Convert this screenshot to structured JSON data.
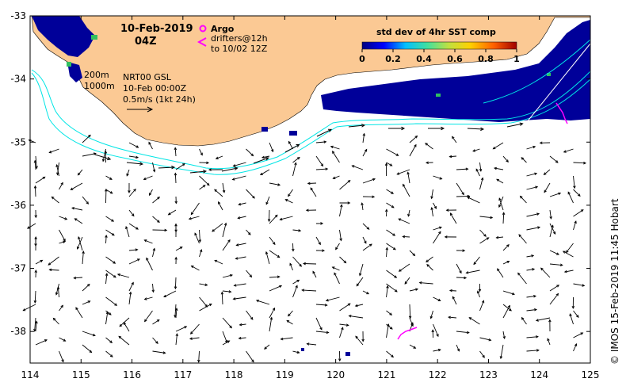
{
  "date_title": "10-Feb-2019",
  "time_title": "04Z",
  "legend": {
    "argo_label": "Argo",
    "drifters_line1": "drifters@12h",
    "drifters_line2": "to 10/02 12Z",
    "argo_color": "#ff00ff",
    "drifter_color": "#ff00ff"
  },
  "product": {
    "name": "NRT00 GSL",
    "time": "10-Feb 00:00Z",
    "scale_text": "0.5m/s (1kt 24h)"
  },
  "isobaths": {
    "label_200": "200m",
    "label_1000": "1000m",
    "color": "#00e5e5"
  },
  "colorbar": {
    "title": "std dev of 4hr SST comp",
    "ticks": [
      "0",
      "0.2",
      "0.4",
      "0.6",
      "0.8",
      "1"
    ],
    "colors": [
      "#000080",
      "#0000ff",
      "#00bfff",
      "#40e0a0",
      "#c0e040",
      "#ffd000",
      "#ff6000",
      "#a00000"
    ]
  },
  "axes": {
    "x_ticks": [
      "114",
      "115",
      "116",
      "117",
      "118",
      "119",
      "120",
      "121",
      "122",
      "123",
      "124",
      "125"
    ],
    "y_ticks": [
      "-33",
      "-34",
      "-35",
      "-36",
      "-37",
      "-38"
    ],
    "xlim": [
      114,
      125
    ],
    "ylim": [
      -38.5,
      -33
    ]
  },
  "colors": {
    "land": "#fbc994",
    "sea": "#ffffff",
    "sst_patch": "#000099",
    "arrow": "#000000"
  },
  "credit": "© IMOS 15-Feb-2019 11:45 Hobart"
}
